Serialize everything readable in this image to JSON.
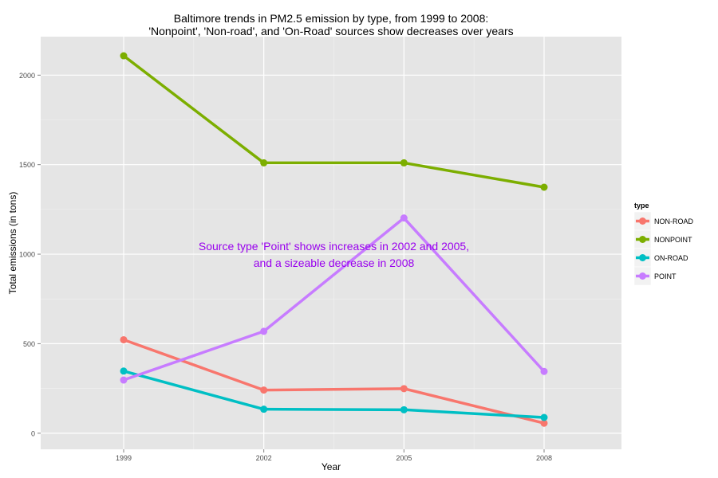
{
  "chart_data": {
    "type": "line",
    "title_line1": "Baltimore trends in PM2.5 emission by type, from 1999 to 2008:",
    "title_line2": "'Nonpoint', 'Non-road', and 'On-Road' sources show decreases over years",
    "xlabel": "Year",
    "ylabel": "Total emissions (in tons)",
    "x": [
      1999,
      2002,
      2005,
      2008
    ],
    "x_tick_labels": [
      "1999",
      "2002",
      "2005",
      "2008"
    ],
    "ylim": [
      -90,
      2215
    ],
    "y_ticks": [
      0,
      500,
      1000,
      1500,
      2000
    ],
    "y_tick_labels": [
      "0",
      "500",
      "1000",
      "1500",
      "2000"
    ],
    "grid": true,
    "legend_title": "type",
    "legend_position": "right",
    "series": [
      {
        "name": "NON-ROAD",
        "color": "#F8766D",
        "values": [
          522,
          241,
          249,
          56
        ]
      },
      {
        "name": "NONPOINT",
        "color": "#7CAE00",
        "values": [
          2108,
          1510,
          1510,
          1374
        ]
      },
      {
        "name": "ON-ROAD",
        "color": "#00BFC4",
        "values": [
          347,
          134,
          131,
          88
        ]
      },
      {
        "name": "POINT",
        "color": "#C77CFF",
        "values": [
          297,
          569,
          1202,
          345
        ]
      }
    ],
    "annotation_line1": "Source type 'Point' shows increases in 2002 and 2005,",
    "annotation_line2": "and a sizeable decrease in 2008",
    "annotation_color": "#9900EE",
    "annotation_anchor": {
      "x": 2003.5,
      "y": 1000
    }
  }
}
